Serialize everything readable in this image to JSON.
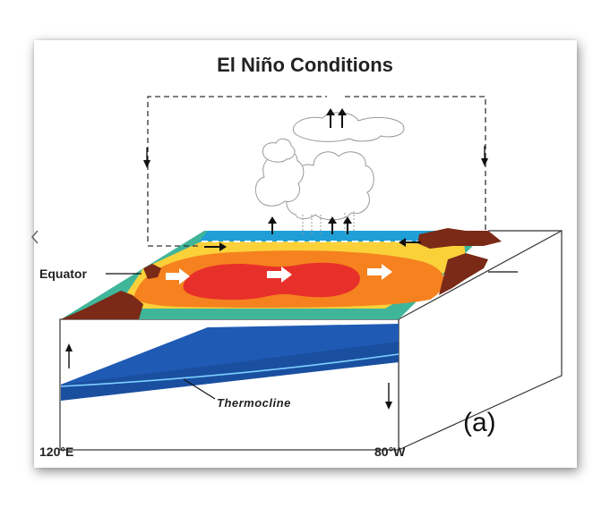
{
  "title": "El Niño Conditions",
  "labels": {
    "equator": "Equator",
    "thermocline": "Thermocline",
    "west_longitude": "120°E",
    "east_longitude": "80°W",
    "panel": "(a)"
  },
  "colors": {
    "warm_core": "#e8302a",
    "warm": "#f5821f",
    "mild": "#fbd13a",
    "cool": "#3fb59a",
    "cold": "#1f9fd6",
    "land": "#7a2a16",
    "deep_ocean": "#1a4fa0"
  }
}
